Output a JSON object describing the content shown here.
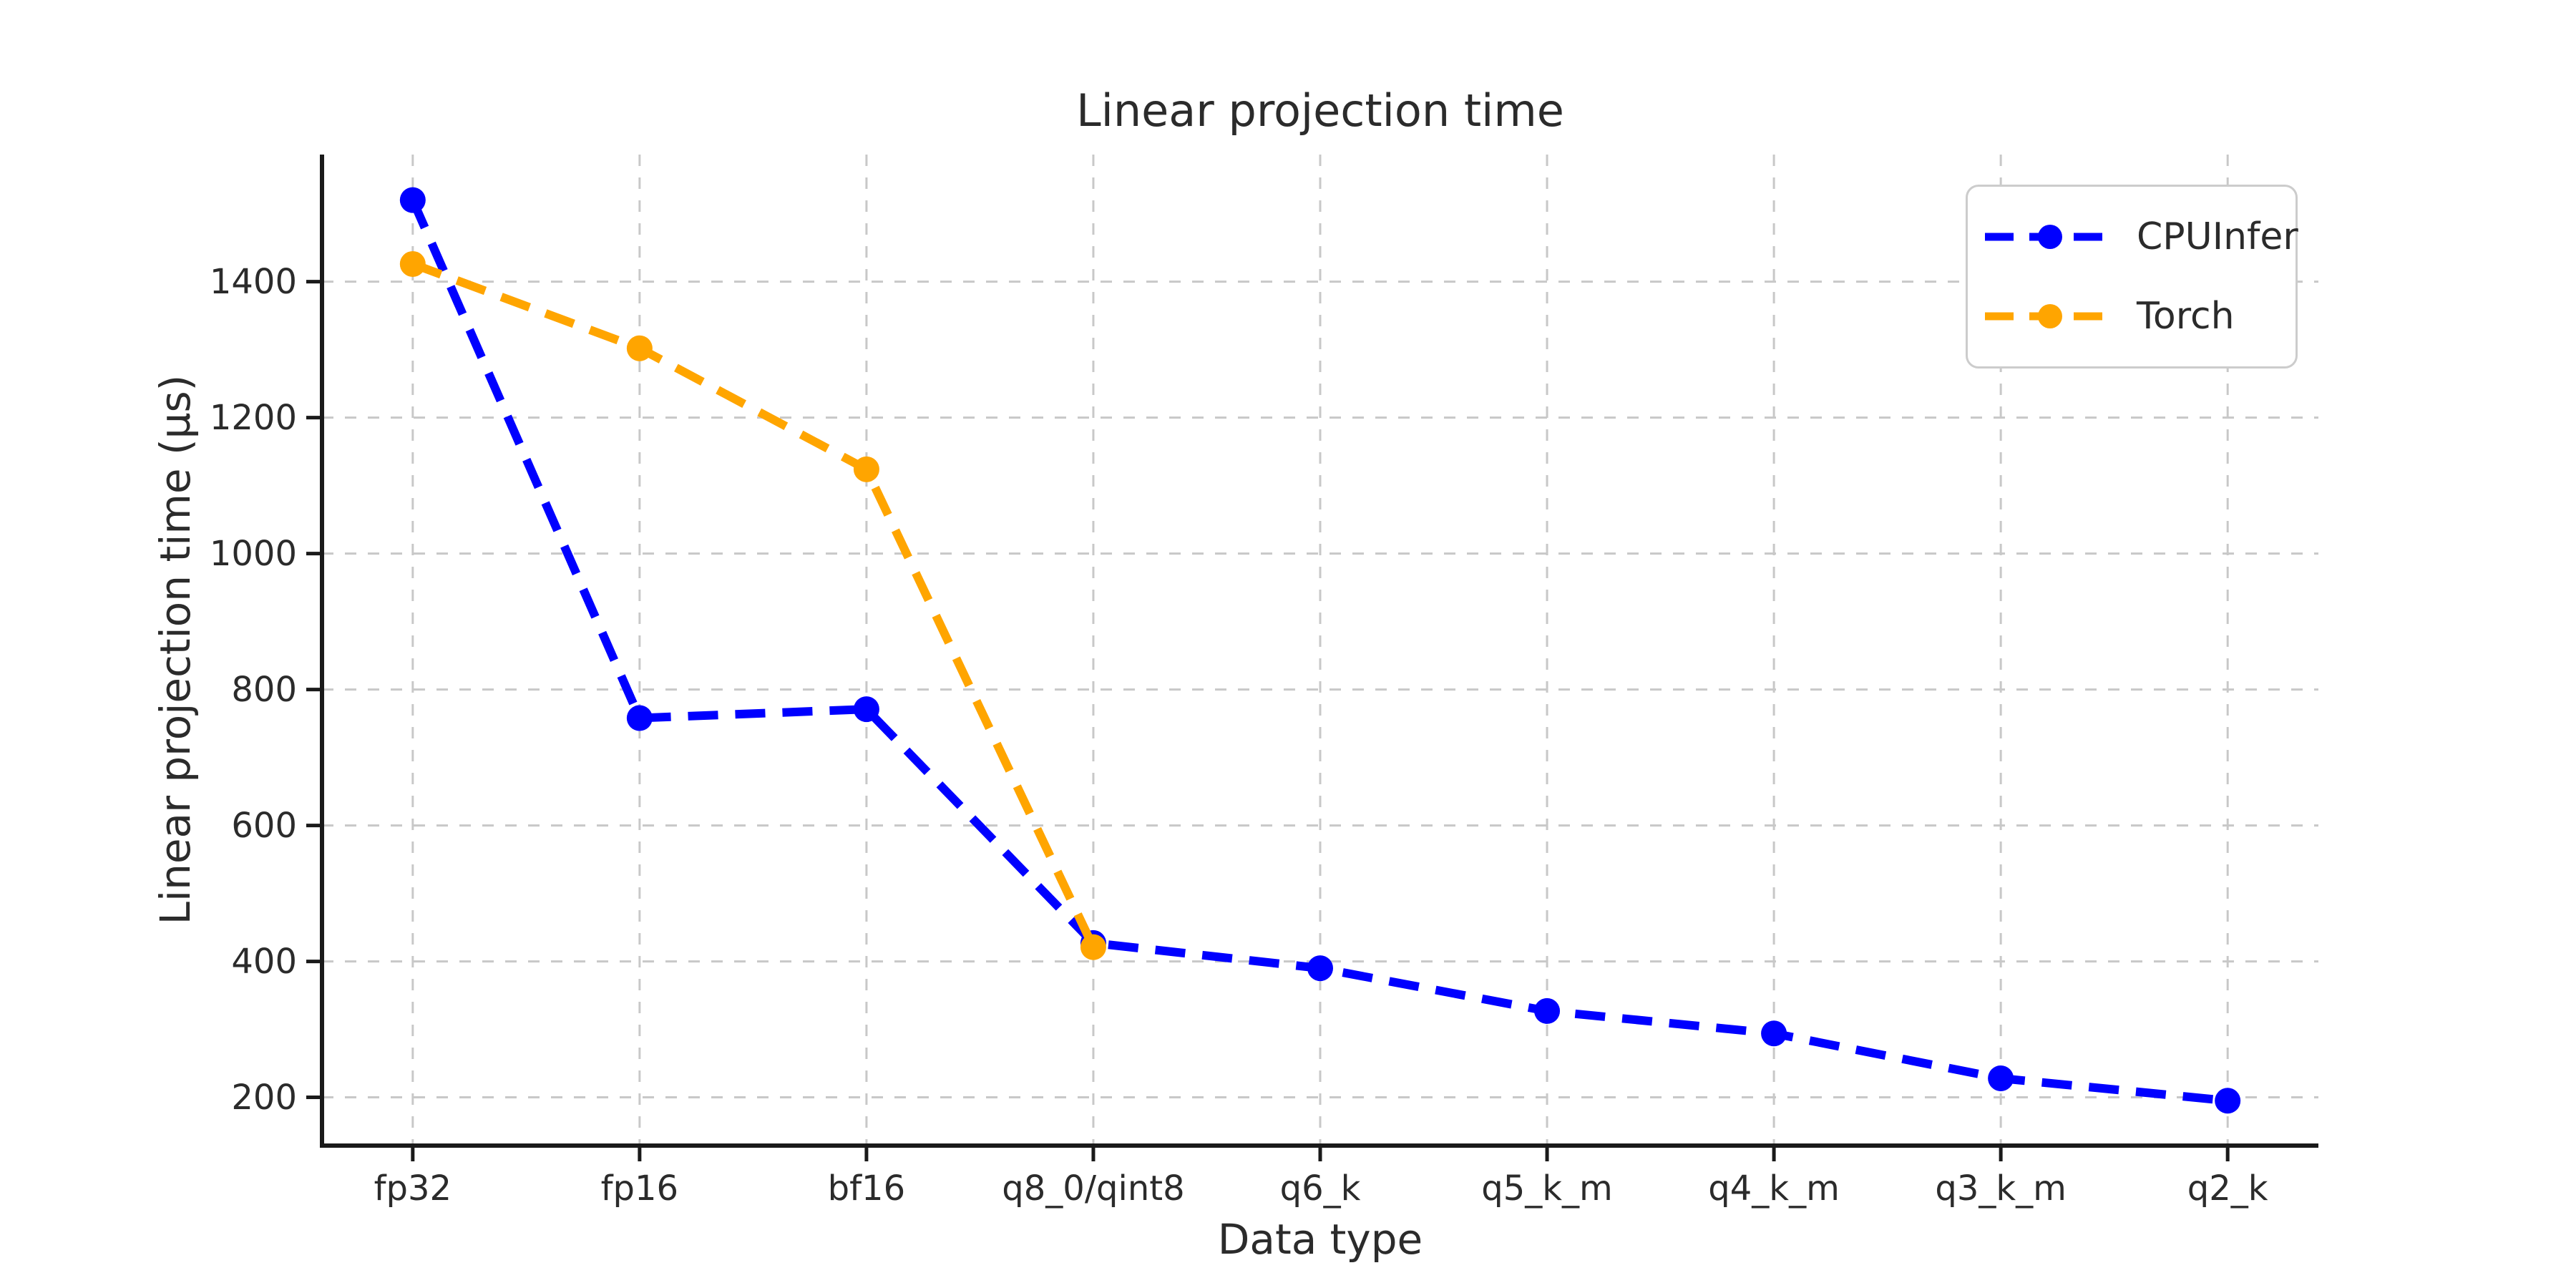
{
  "chart_data": {
    "type": "line",
    "title": "Linear projection time",
    "xlabel": "Data type",
    "ylabel": "Linear projection time (µs)",
    "categories": [
      "fp32",
      "fp16",
      "bf16",
      "q8_0/qint8",
      "q6_k",
      "q5_k_m",
      "q4_k_m",
      "q3_k_m",
      "q2_k"
    ],
    "y_ticks": [
      200,
      400,
      600,
      800,
      1000,
      1200,
      1400
    ],
    "ylim": [
      129,
      1587
    ],
    "x_margin": 0.4,
    "grid": true,
    "line_style": "dashed",
    "marker": "circle",
    "legend_position": "upper right",
    "series": [
      {
        "name": "CPUInfer",
        "color": "#0000ff",
        "values": [
          1520,
          758,
          771,
          427,
          390,
          327,
          294,
          228,
          195
        ]
      },
      {
        "name": "Torch",
        "color": "#ffa500",
        "values": [
          1426,
          1302,
          1124,
          421,
          null,
          null,
          null,
          null,
          null
        ]
      }
    ]
  },
  "colors": {
    "grid": "#c8c8c8",
    "spine": "#1a1a1a",
    "text": "#2b2b2b",
    "legend_border": "#cccccc",
    "background": "#ffffff"
  }
}
